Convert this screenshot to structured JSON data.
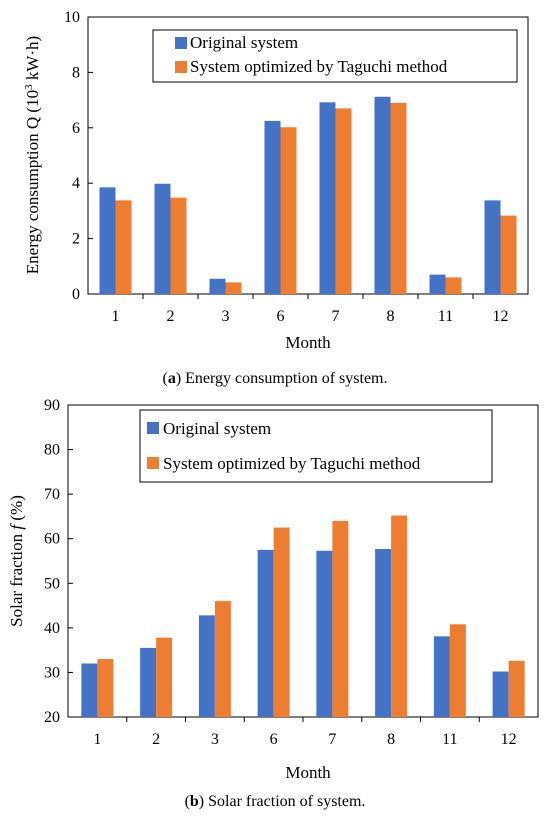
{
  "chart_data": [
    {
      "type": "bar",
      "caption_letter": "a",
      "caption_text": "Energy consumption of system.",
      "xlabel": "Month",
      "ylabel_main": "Energy consumption Q (10",
      "ylabel_sup": "3",
      "ylabel_tail": " kW·h)",
      "categories": [
        "1",
        "2",
        "3",
        "6",
        "7",
        "8",
        "11",
        "12"
      ],
      "ylim": [
        0,
        10
      ],
      "yticks": [
        0,
        2,
        4,
        6,
        8,
        10
      ],
      "grid": false,
      "legend_position": "top-right",
      "series": [
        {
          "name": "Original system",
          "color": "#4472C4",
          "values": [
            3.85,
            3.98,
            0.55,
            6.25,
            6.92,
            7.12,
            0.7,
            3.38
          ]
        },
        {
          "name": "System optimized by Taguchi method",
          "color": "#ED7D31",
          "values": [
            3.38,
            3.48,
            0.42,
            6.02,
            6.7,
            6.9,
            0.6,
            2.83
          ]
        }
      ]
    },
    {
      "type": "bar",
      "caption_letter": "b",
      "caption_text": "Solar fraction of system.",
      "xlabel": "Month",
      "ylabel_main": "Solar fraction ",
      "ylabel_italic": "f",
      "ylabel_tail": " (%)",
      "categories": [
        "1",
        "2",
        "3",
        "6",
        "7",
        "8",
        "11",
        "12"
      ],
      "ylim": [
        20,
        90
      ],
      "yticks": [
        20,
        30,
        40,
        50,
        60,
        70,
        80,
        90
      ],
      "grid": false,
      "legend_position": "top-right",
      "series": [
        {
          "name": "Original system",
          "color": "#4472C4",
          "values": [
            32.0,
            35.5,
            42.8,
            57.5,
            57.3,
            57.7,
            38.1,
            30.2
          ]
        },
        {
          "name": "System optimized by Taguchi method",
          "color": "#ED7D31",
          "values": [
            33.0,
            37.8,
            46.0,
            62.5,
            64.0,
            65.2,
            40.8,
            32.6
          ]
        }
      ]
    }
  ]
}
